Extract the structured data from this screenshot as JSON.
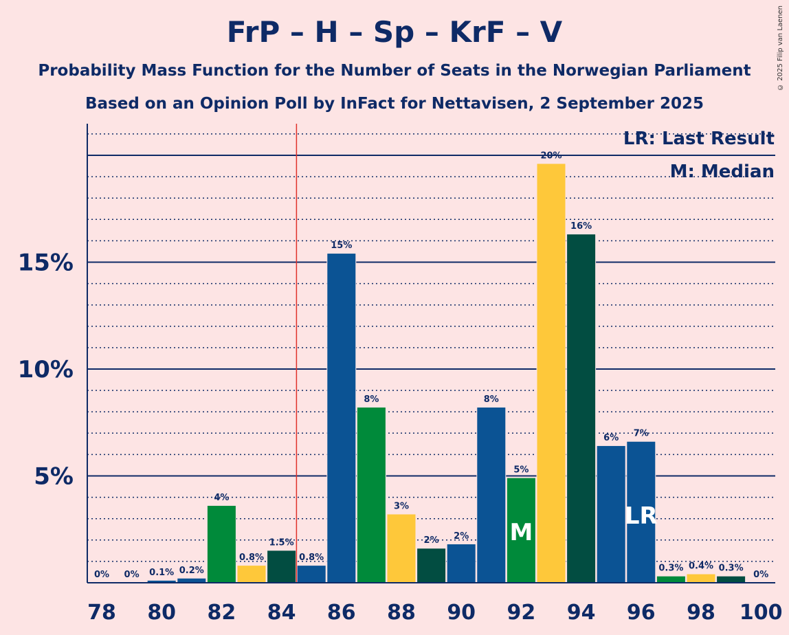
{
  "title": "FrP – H – Sp – KrF – V",
  "subtitle": "Probability Mass Function for the Number of Seats in the Norwegian Parliament",
  "subtitle2": "Based on an Opinion Poll by InFact for Nettavisen, 2 September 2025",
  "copyright": "© 2025 Filip van Laenen",
  "legend": {
    "last_result": "LR: Last Result",
    "median": "M: Median"
  },
  "colors": {
    "background": "#fde4e4",
    "frp_blue": "#0b5394",
    "h_blue": "#08498c",
    "sp_green": "#008a3a",
    "krf_yellow": "#fec83a",
    "v_darkgreen": "#024d41",
    "axis": "#0e2a66",
    "majority_line": "#e0302a"
  },
  "chart_data": {
    "type": "bar",
    "x": [
      78,
      79,
      80,
      81,
      82,
      83,
      84,
      85,
      86,
      87,
      88,
      89,
      90,
      91,
      92,
      93,
      94,
      95,
      96,
      97,
      98,
      99,
      100
    ],
    "values": [
      0,
      0,
      0.1,
      0.2,
      3.6,
      0.8,
      1.5,
      0.8,
      15.4,
      8.2,
      3.2,
      1.6,
      1.8,
      8.2,
      4.9,
      19.6,
      16.3,
      6.4,
      6.6,
      0.3,
      0.4,
      0.3,
      0
    ],
    "labels": [
      "0%",
      "0%",
      "0.1%",
      "0.2%",
      "4%",
      "0.8%",
      "1.5%",
      "0.8%",
      "15%",
      "8%",
      "3%",
      "2%",
      "2%",
      "8%",
      "5%",
      "20%",
      "16%",
      "6%",
      "7%",
      "0.3%",
      "0.4%",
      "0.3%",
      "0%"
    ],
    "bar_colors": [
      "#0b5394",
      "#08498c",
      "#0b5394",
      "#0b5394",
      "#008a3a",
      "#fec83a",
      "#024d41",
      "#0b5394",
      "#0b5394",
      "#008a3a",
      "#fec83a",
      "#024d41",
      "#0b5394",
      "#0b5394",
      "#008a3a",
      "#fec83a",
      "#024d41",
      "#0b5394",
      "#0b5394",
      "#008a3a",
      "#fec83a",
      "#024d41",
      "#0b5394"
    ],
    "xticks": [
      78,
      80,
      82,
      84,
      86,
      88,
      90,
      92,
      94,
      96,
      98,
      100
    ],
    "xtick_labels": [
      "78",
      "80",
      "82",
      "84",
      "86",
      "88",
      "90",
      "92",
      "94",
      "96",
      "98",
      "100"
    ],
    "yticks": [
      5,
      10,
      15
    ],
    "ytick_labels": [
      "5%",
      "10%",
      "15%"
    ],
    "ylim": [
      0,
      21.5
    ],
    "majority_line_x": 84.5,
    "median_seat": 92,
    "median_label": "M",
    "last_result_seat": 96,
    "last_result_label": "LR",
    "grid": "dotted minor every 1%, solid major every 5%",
    "legend_position": "top-right"
  }
}
